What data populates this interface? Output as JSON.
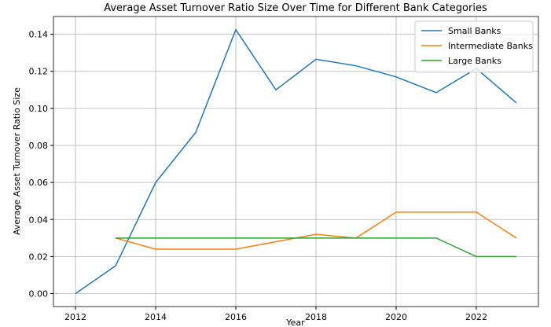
{
  "chart_data": {
    "type": "line",
    "title": "Average Asset Turnover Ratio Size Over Time for Different Bank Categories",
    "xlabel": "Year",
    "ylabel": "Average Asset Turnover Ratio Size",
    "x": [
      2012,
      2013,
      2014,
      2015,
      2016,
      2017,
      2018,
      2019,
      2020,
      2021,
      2022,
      2023
    ],
    "series": [
      {
        "name": "Small Banks",
        "color": "#1f77b4",
        "values": [
          0,
          0.015,
          0.06,
          0.087,
          0.1425,
          0.11,
          0.1265,
          0.123,
          0.117,
          0.1085,
          0.1215,
          0.103
        ]
      },
      {
        "name": "Intermediate Banks",
        "color": "#ff7f0e",
        "values": [
          null,
          0.03,
          0.024,
          0.024,
          0.024,
          0.028,
          0.032,
          0.03,
          0.044,
          0.044,
          0.044,
          0.03
        ]
      },
      {
        "name": "Large Banks",
        "color": "#2ca02c",
        "values": [
          null,
          0.03,
          0.03,
          0.03,
          0.03,
          0.03,
          0.03,
          0.03,
          0.03,
          0.03,
          0.02,
          0.02
        ]
      }
    ],
    "xlim": [
      2011.45,
      2023.55
    ],
    "xticks": [
      2012,
      2014,
      2016,
      2018,
      2020,
      2022
    ],
    "ylim": [
      -0.007,
      0.1496
    ],
    "yticks": [
      {
        "value": 0,
        "label": "0.00"
      },
      0.02,
      0.04,
      0.06,
      0.08,
      {
        "value": 0.1,
        "label": "0.10"
      },
      0.12,
      0.14
    ],
    "grid": true,
    "legend": "upper right"
  }
}
